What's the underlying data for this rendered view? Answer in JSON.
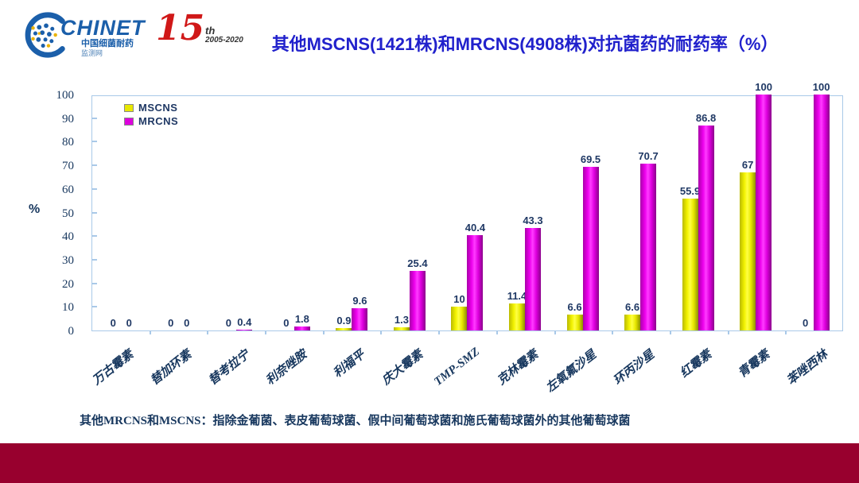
{
  "header": {
    "logo_name": "CHINET",
    "logo_sub1": "中国细菌耐药",
    "logo_sub2": "监测网",
    "anniversary_number": "15",
    "anniversary_suffix": "th",
    "anniversary_years": "2005-2020",
    "title": "其他MSCNS(1421株)和MRCNS(4908株)对抗菌药的耐药率（%）"
  },
  "chart_data": {
    "type": "bar",
    "title": "其他MSCNS(1421株)和MRCNS(4908株)对抗菌药的耐药率（%）",
    "xlabel": "",
    "ylabel": "%",
    "ylim": [
      0,
      100
    ],
    "yticks": [
      0,
      10,
      20,
      30,
      40,
      50,
      60,
      70,
      80,
      90,
      100
    ],
    "grid": false,
    "legend_position": "top-left",
    "categories": [
      "万古霉素",
      "替加环素",
      "替考拉宁",
      "利奈唑胺",
      "利福平",
      "庆大霉素",
      "TMP-SMZ",
      "克林霉素",
      "左氧氟沙星",
      "环丙沙星",
      "红霉素",
      "青霉素",
      "苯唑西林"
    ],
    "series": [
      {
        "name": "MSCNS",
        "color": "#e8e800",
        "values": [
          0,
          0,
          0,
          0,
          0.9,
          1.3,
          10,
          11.4,
          6.6,
          6.6,
          55.9,
          67,
          0
        ]
      },
      {
        "name": "MRCNS",
        "color": "#dd00dd",
        "values": [
          0,
          0,
          0.4,
          1.8,
          9.6,
          25.4,
          40.4,
          43.3,
          69.5,
          70.7,
          86.8,
          100,
          100
        ]
      }
    ]
  },
  "footnote": "其他MRCNS和MSCNS：指除金葡菌、表皮葡萄球菌、假中间葡萄球菌和施氏葡萄球菌外的其他葡萄球菌",
  "colors": {
    "title": "#2121cc",
    "axis": "#a9c9e8",
    "label_text": "#1f3864",
    "mscns_bar": "#e8e800",
    "mrcns_bar": "#dd00dd",
    "bottom_band": "#98002e",
    "logo_blue": "#1b5faa",
    "anniversary_red": "#d01818"
  }
}
